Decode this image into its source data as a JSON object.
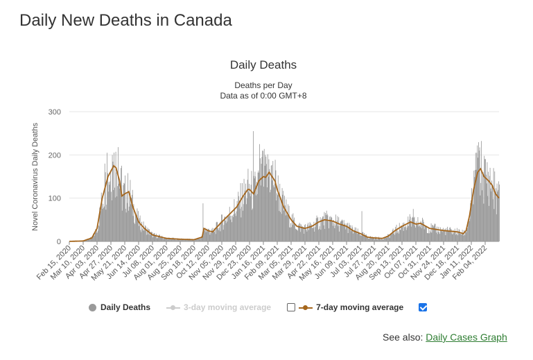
{
  "page": {
    "heading": "Daily New Deaths in Canada"
  },
  "legend": {
    "daily": "Daily Deaths",
    "ma3": "3-day moving average",
    "ma7": "7-day moving average",
    "ma3_checked": false,
    "ma7_checked": true
  },
  "see_also": {
    "prefix": "See also:",
    "link": "Daily Cases Graph"
  },
  "colors": {
    "bars": "#9a9a9a",
    "ma7": "#a5661c",
    "ma3_disabled": "#cccccc",
    "link": "#2e7d32"
  },
  "chart_data": {
    "type": "bar",
    "title": "Daily Deaths",
    "subtitle_lines": [
      "Deaths per Day",
      "Data as of 0:00 GMT+8"
    ],
    "ylabel": "Novel Coronavirus Daily Deaths",
    "ylim": [
      0,
      300
    ],
    "yticks": [
      0,
      100,
      200,
      300
    ],
    "grid": true,
    "legend_position": "bottom",
    "x_start": "2020-02-15",
    "x_end": "2022-02-28",
    "xtick_labels": [
      "Feb 15, 2020",
      "Mar 10, 2020",
      "Apr 03, 2020",
      "Apr 27, 2020",
      "May 21, 2020",
      "Jun 14, 2020",
      "Jul 08, 2020",
      "Aug 01, 2020",
      "Aug 25, 2020",
      "Sep 18, 2020",
      "Oct 12, 2020",
      "Nov 05, 2020",
      "Nov 29, 2020",
      "Dec 23, 2020",
      "Jan 16, 2021",
      "Feb 09, 2021",
      "Mar 05, 2021",
      "Mar 29, 2021",
      "Apr 22, 2021",
      "May 16, 2021",
      "Jun 09, 2021",
      "Jul 03, 2021",
      "Jul 27, 2021",
      "Aug 20, 2021",
      "Sep 13, 2021",
      "Oct 07, 2021",
      "Oct 31, 2021",
      "Nov 24, 2021",
      "Dec 18, 2021",
      "Jan 11, 2022",
      "Feb 04, 2022"
    ],
    "series": [
      {
        "name": "7-day moving average",
        "points": [
          [
            "2020-02-15",
            0
          ],
          [
            "2020-03-10",
            1
          ],
          [
            "2020-03-25",
            8
          ],
          [
            "2020-04-03",
            30
          ],
          [
            "2020-04-12",
            100
          ],
          [
            "2020-04-22",
            150
          ],
          [
            "2020-04-28",
            165
          ],
          [
            "2020-05-02",
            175
          ],
          [
            "2020-05-06",
            170
          ],
          [
            "2020-05-12",
            140
          ],
          [
            "2020-05-16",
            105
          ],
          [
            "2020-05-21",
            110
          ],
          [
            "2020-05-28",
            115
          ],
          [
            "2020-06-04",
            80
          ],
          [
            "2020-06-14",
            45
          ],
          [
            "2020-06-24",
            30
          ],
          [
            "2020-07-08",
            15
          ],
          [
            "2020-08-01",
            7
          ],
          [
            "2020-08-25",
            5
          ],
          [
            "2020-09-18",
            4
          ],
          [
            "2020-10-02",
            10
          ],
          [
            "2020-10-05",
            30
          ],
          [
            "2020-10-12",
            25
          ],
          [
            "2020-10-20",
            22
          ],
          [
            "2020-11-05",
            45
          ],
          [
            "2020-11-20",
            65
          ],
          [
            "2020-12-01",
            80
          ],
          [
            "2020-12-12",
            105
          ],
          [
            "2020-12-20",
            120
          ],
          [
            "2020-12-23",
            120
          ],
          [
            "2020-12-30",
            110
          ],
          [
            "2021-01-08",
            140
          ],
          [
            "2021-01-16",
            150
          ],
          [
            "2021-01-20",
            148
          ],
          [
            "2021-01-26",
            160
          ],
          [
            "2021-02-05",
            140
          ],
          [
            "2021-02-09",
            120
          ],
          [
            "2021-02-20",
            80
          ],
          [
            "2021-03-05",
            50
          ],
          [
            "2021-03-15",
            35
          ],
          [
            "2021-03-29",
            30
          ],
          [
            "2021-04-10",
            35
          ],
          [
            "2021-04-22",
            45
          ],
          [
            "2021-05-02",
            50
          ],
          [
            "2021-05-16",
            47
          ],
          [
            "2021-05-28",
            40
          ],
          [
            "2021-06-09",
            35
          ],
          [
            "2021-06-20",
            25
          ],
          [
            "2021-07-03",
            18
          ],
          [
            "2021-07-15",
            10
          ],
          [
            "2021-07-27",
            8
          ],
          [
            "2021-08-10",
            7
          ],
          [
            "2021-08-20",
            12
          ],
          [
            "2021-09-01",
            25
          ],
          [
            "2021-09-13",
            35
          ],
          [
            "2021-09-28",
            45
          ],
          [
            "2021-10-07",
            40
          ],
          [
            "2021-10-15",
            42
          ],
          [
            "2021-10-31",
            30
          ],
          [
            "2021-11-24",
            25
          ],
          [
            "2021-12-18",
            22
          ],
          [
            "2021-12-28",
            18
          ],
          [
            "2022-01-02",
            25
          ],
          [
            "2022-01-08",
            60
          ],
          [
            "2022-01-15",
            120
          ],
          [
            "2022-01-22",
            160
          ],
          [
            "2022-01-27",
            168
          ],
          [
            "2022-02-02",
            150
          ],
          [
            "2022-02-10",
            140
          ],
          [
            "2022-02-16",
            130
          ],
          [
            "2022-02-22",
            110
          ],
          [
            "2022-02-28",
            100
          ]
        ]
      }
    ],
    "daily_spikes": [
      [
        "2020-04-20",
        205
      ],
      [
        "2020-04-29",
        200
      ],
      [
        "2020-05-09",
        218
      ],
      [
        "2020-05-15",
        175
      ],
      [
        "2020-04-16",
        180
      ],
      [
        "2020-10-03",
        88
      ],
      [
        "2020-12-29",
        255
      ],
      [
        "2021-01-09",
        225
      ],
      [
        "2021-01-14",
        210
      ],
      [
        "2021-01-18",
        175
      ],
      [
        "2021-01-25",
        190
      ],
      [
        "2021-07-05",
        70
      ],
      [
        "2021-10-02",
        75
      ],
      [
        "2022-01-18",
        205
      ],
      [
        "2022-01-21",
        222
      ],
      [
        "2022-01-24",
        210
      ]
    ]
  }
}
